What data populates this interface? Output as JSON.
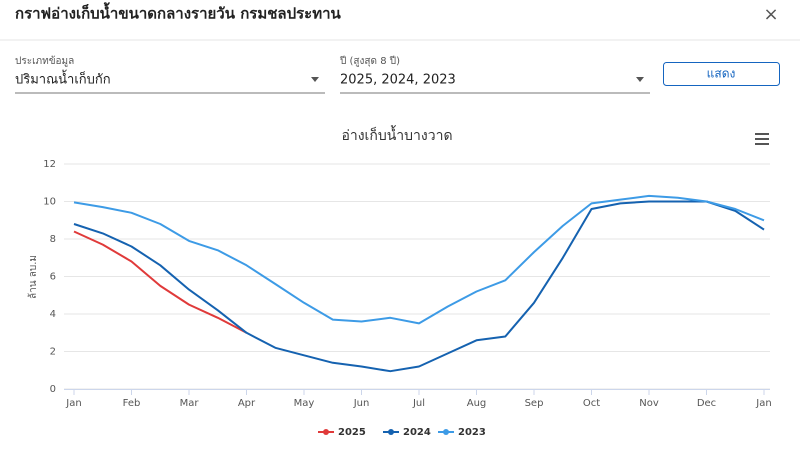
{
  "dialog": {
    "title": "กราฟอ่างเก็บน้ำขนาดกลางรายวัน กรมชลประทาน",
    "close": "×"
  },
  "form": {
    "type_label": "ประเภทข้อมูล",
    "type_value": "ปริมาณน้ำเก็บกัก",
    "year_label": "ปี (สูงสุด 8 ปี)",
    "year_value": "2025, 2024, 2023",
    "button": "แสดง"
  },
  "chart_data": {
    "type": "line",
    "title": "อ่างเก็บน้ำบางวาด",
    "y_label": "ล้าน ลบ.ม",
    "x": [
      0,
      0.5,
      1,
      1.5,
      2,
      2.5,
      3,
      3.5,
      4,
      4.5,
      5,
      5.5,
      6,
      6.5,
      7,
      7.5,
      8,
      8.5,
      9,
      9.5,
      10,
      10.5,
      11,
      11.5,
      12
    ],
    "xlim": [
      0,
      12
    ],
    "xticks": [
      {
        "value": 0,
        "label": "Jan"
      },
      {
        "value": 1,
        "label": "Feb"
      },
      {
        "value": 2,
        "label": "Mar"
      },
      {
        "value": 3,
        "label": "Apr"
      },
      {
        "value": 4,
        "label": "May"
      },
      {
        "value": 5,
        "label": "Jun"
      },
      {
        "value": 6,
        "label": "Jul"
      },
      {
        "value": 7,
        "label": "Aug"
      },
      {
        "value": 8,
        "label": "Sep"
      },
      {
        "value": 9,
        "label": "Oct"
      },
      {
        "value": 10,
        "label": "Nov"
      },
      {
        "value": 11,
        "label": "Dec"
      },
      {
        "value": 12,
        "label": "Jan"
      }
    ],
    "ylim": [
      0,
      12
    ],
    "yticks": [
      0,
      2,
      4,
      6,
      8,
      10,
      12
    ],
    "grid": true,
    "series": [
      {
        "name": "2025",
        "color": "#e03a3a",
        "values": [
          8.4,
          7.7,
          6.8,
          5.5,
          4.5,
          3.8,
          3.0,
          null,
          null,
          null,
          null,
          null,
          null,
          null,
          null,
          null,
          null,
          null,
          null,
          null,
          null,
          null,
          null,
          null,
          null
        ]
      },
      {
        "name": "2024",
        "color": "#1562b0",
        "values": [
          8.8,
          8.3,
          7.6,
          6.6,
          5.3,
          4.2,
          3.0,
          2.2,
          1.8,
          1.4,
          1.2,
          0.95,
          1.2,
          1.9,
          2.6,
          2.8,
          4.6,
          7.0,
          9.6,
          9.9,
          10.0,
          10.0,
          10.0,
          9.5,
          8.5
        ]
      },
      {
        "name": "2023",
        "color": "#3d9be6",
        "values": [
          9.95,
          9.7,
          9.4,
          8.8,
          7.9,
          7.4,
          6.6,
          5.6,
          4.6,
          3.7,
          3.6,
          3.8,
          3.5,
          4.4,
          5.2,
          5.8,
          7.3,
          8.7,
          9.9,
          10.1,
          10.3,
          10.2,
          10.0,
          9.6,
          9.0
        ]
      }
    ],
    "legend": "bottom"
  }
}
